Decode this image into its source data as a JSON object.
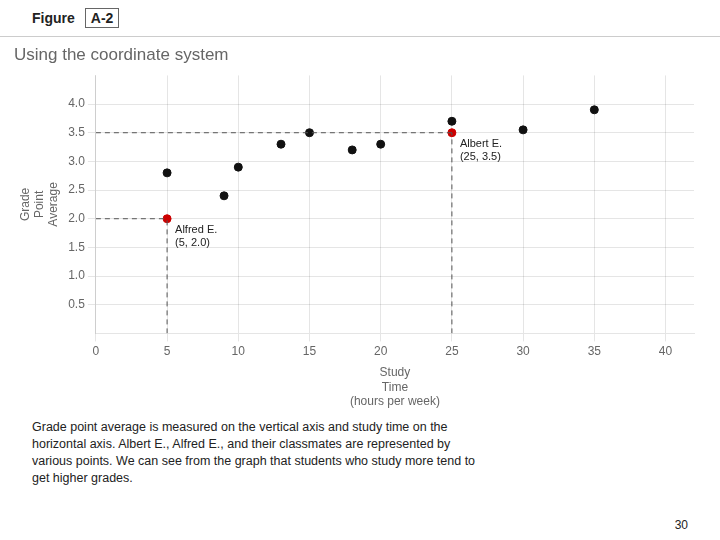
{
  "chart_data": {
    "type": "scatter",
    "title": "Using the coordinate system",
    "figure_label": "Figure",
    "figure_number": "A-2",
    "x": [
      5,
      5,
      9,
      10,
      13,
      15,
      18,
      20,
      25,
      25,
      30,
      35
    ],
    "values": [
      2.8,
      2.0,
      2.4,
      2.9,
      3.3,
      3.5,
      3.2,
      3.3,
      3.7,
      3.5,
      3.55,
      3.9
    ],
    "colors": [
      "#111111",
      "#cc0000",
      "#111111",
      "#111111",
      "#111111",
      "#111111",
      "#111111",
      "#111111",
      "#111111",
      "#cc0000",
      "#111111",
      "#111111"
    ],
    "xlim": [
      0,
      42
    ],
    "ylim": [
      0,
      4.5
    ],
    "xticks": [
      0,
      5,
      10,
      15,
      20,
      25,
      30,
      35,
      40
    ],
    "yticks": [
      0.5,
      {
        "value": 1.0,
        "label": "1.0"
      },
      1.5,
      {
        "value": 2.0,
        "label": "2.0"
      },
      2.5,
      {
        "value": 3.0,
        "label": "3.0"
      },
      3.5,
      {
        "value": 4.0,
        "label": "4.0"
      }
    ],
    "grid": true,
    "xlabel": "Study\nTime\n(hours per week)",
    "ylabel": "Grade\nPoint\nAverage",
    "annotations": [
      {
        "text": "Alfred E.\n(5, 2.0)",
        "x": 5,
        "y": 2.0,
        "line_style": "dashed"
      },
      {
        "text": "Albert E.\n(25, 3.5)",
        "x": 25,
        "y": 3.5,
        "line_style": "dashed"
      }
    ],
    "caption": "Grade point average is measured on the vertical axis and study time on the\nhorizontal axis. Albert E., Alfred E., and their classmates are represented by\nvarious points. We can see from the graph that students who study more tend to\nget higher grades.",
    "page_number": "30"
  }
}
